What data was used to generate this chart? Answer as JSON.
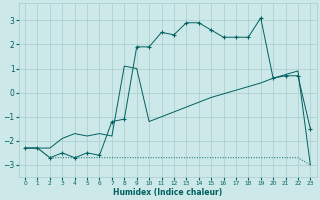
{
  "xlabel": "Humidex (Indice chaleur)",
  "bg_color": "#cce8e8",
  "grid_color": "#a8cccc",
  "line_color": "#006060",
  "xlim": [
    -0.5,
    23.5
  ],
  "ylim": [
    -3.5,
    3.7
  ],
  "yticks": [
    -3,
    -2,
    -1,
    0,
    1,
    2,
    3
  ],
  "xticks": [
    0,
    1,
    2,
    3,
    4,
    5,
    6,
    7,
    8,
    9,
    10,
    11,
    12,
    13,
    14,
    15,
    16,
    17,
    18,
    19,
    20,
    21,
    22,
    23
  ],
  "line1_x": [
    0,
    1,
    2,
    3,
    4,
    5,
    6,
    7,
    8,
    9,
    10,
    11,
    12,
    13,
    14,
    15,
    16,
    17,
    18,
    19,
    20,
    21,
    22,
    23
  ],
  "line1_y": [
    -2.3,
    -2.3,
    -2.7,
    -2.7,
    -2.7,
    -2.7,
    -2.7,
    -2.7,
    -2.7,
    -2.7,
    -2.7,
    -2.7,
    -2.7,
    -2.7,
    -2.7,
    -2.7,
    -2.7,
    -2.7,
    -2.7,
    -2.7,
    -2.7,
    -2.7,
    -2.7,
    -3.0
  ],
  "line2_x": [
    0,
    1,
    2,
    3,
    4,
    5,
    6,
    7,
    8,
    9,
    10,
    11,
    12,
    13,
    14,
    15,
    16,
    17,
    18,
    19,
    20,
    21,
    22,
    23
  ],
  "line2_y": [
    -2.3,
    -2.3,
    -2.3,
    -1.9,
    -1.7,
    -1.8,
    -1.7,
    -1.8,
    1.1,
    1.0,
    -1.2,
    -1.0,
    -0.8,
    -0.6,
    -0.4,
    -0.2,
    -0.05,
    0.1,
    0.25,
    0.4,
    0.6,
    0.75,
    0.9,
    -3.0
  ],
  "line3_x": [
    0,
    1,
    2,
    3,
    4,
    5,
    6,
    7,
    8,
    9,
    10,
    11,
    12,
    13,
    14,
    15,
    16,
    17,
    18,
    19,
    20,
    21,
    22,
    23
  ],
  "line3_y": [
    -2.3,
    -2.3,
    -2.7,
    -2.5,
    -2.7,
    -2.5,
    -2.6,
    -1.2,
    -1.1,
    1.9,
    1.9,
    2.5,
    2.4,
    2.9,
    2.9,
    2.6,
    2.3,
    2.3,
    2.3,
    3.1,
    0.6,
    0.7,
    0.7,
    -1.5
  ]
}
